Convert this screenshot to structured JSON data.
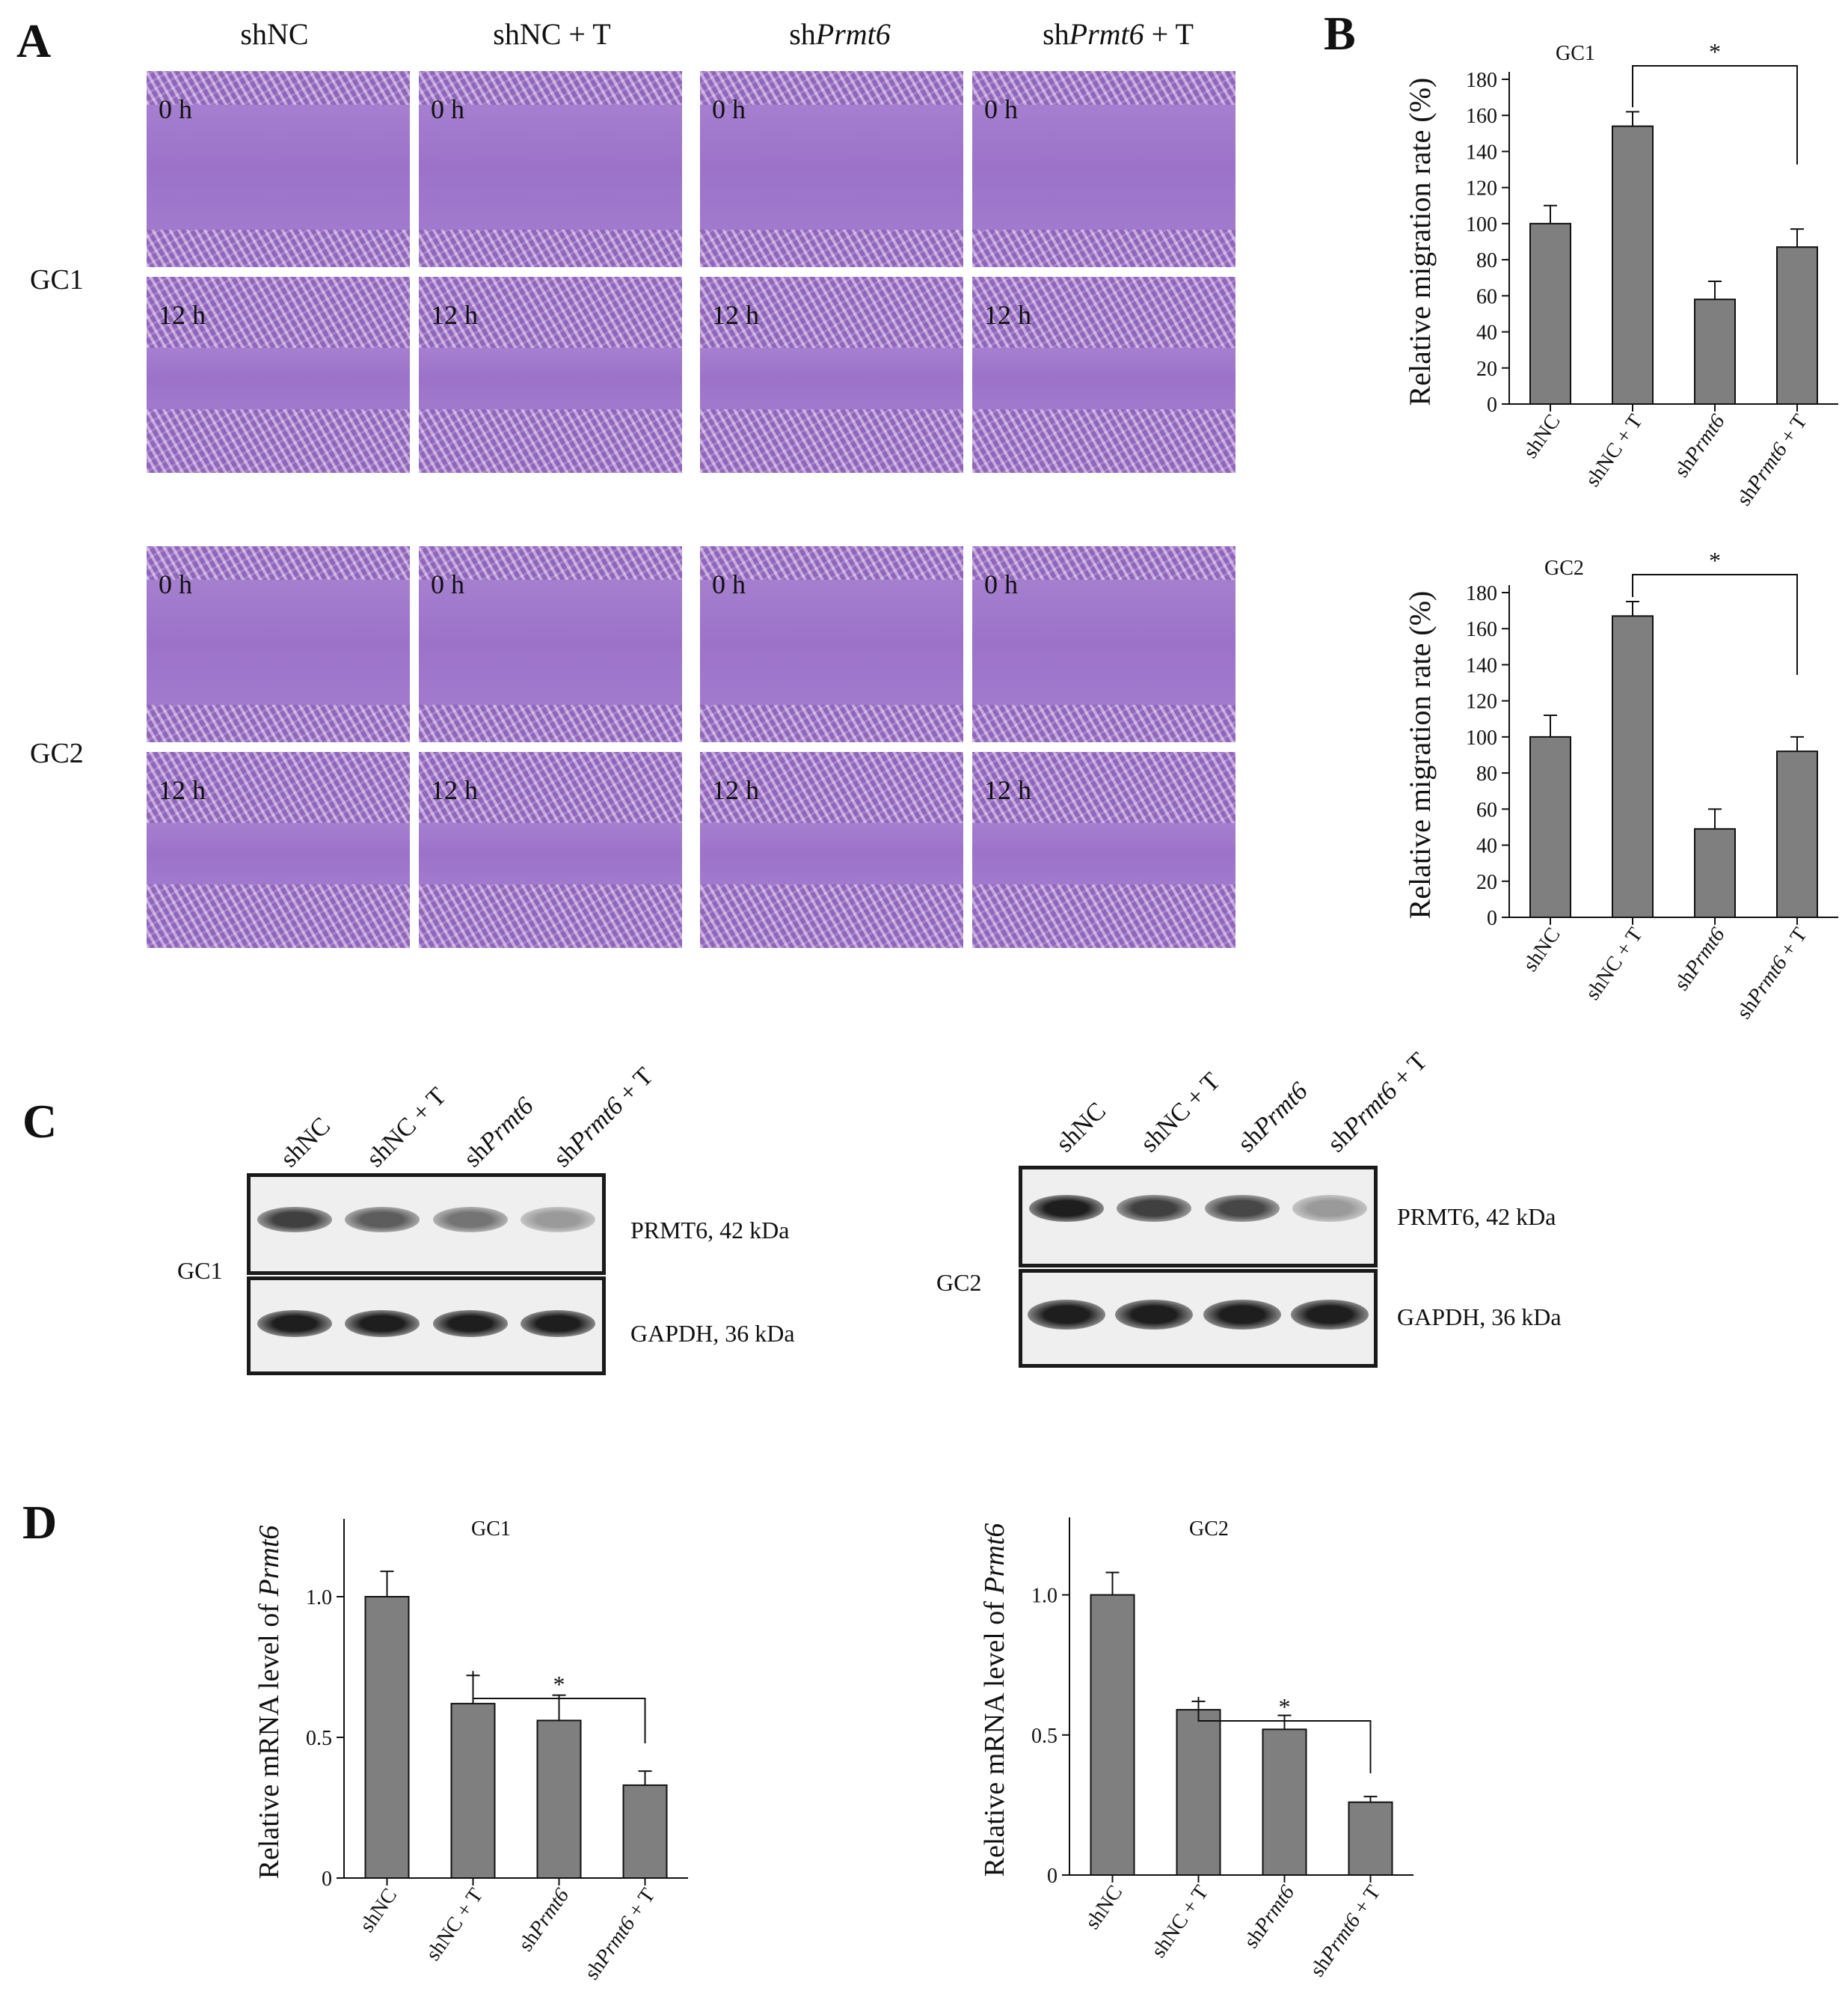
{
  "panels": {
    "A": "A",
    "B": "B",
    "C": "C",
    "D": "D"
  },
  "panelA": {
    "columns": [
      {
        "pre": "sh",
        "main": "NC",
        "italic": "",
        "post": ""
      },
      {
        "pre": "sh",
        "main": "NC + T",
        "italic": "",
        "post": ""
      },
      {
        "pre": "sh",
        "main": "",
        "italic": "Prmt6",
        "post": ""
      },
      {
        "pre": "sh",
        "main": "",
        "italic": "Prmt6",
        "post": " + T"
      }
    ],
    "rows": [
      "GC1",
      "GC2"
    ],
    "time_labels": [
      "0 h",
      "12 h"
    ]
  },
  "panelC": {
    "lanes": [
      "shNC",
      "shNC + T",
      "shPrmt6",
      "shPrmt6 + T"
    ],
    "gc1_label": "GC1",
    "gc2_label": "GC2",
    "prmt6_label": "PRMT6, 42 kDa",
    "gapdh_label": "GAPDH, 36 kDa",
    "gc1_prmt6_intensity": [
      0.85,
      0.72,
      0.62,
      0.45
    ],
    "gc2_prmt6_intensity": [
      1.0,
      0.85,
      0.82,
      0.45
    ]
  },
  "chart_data": [
    {
      "type": "bar",
      "panel": "B",
      "title": "GC1",
      "categories": [
        "shNC",
        "shNC + T",
        "shPrmt6",
        "shPrmt6 + T"
      ],
      "values": [
        100,
        154,
        58,
        87
      ],
      "errors": [
        10,
        8,
        10,
        10
      ],
      "ylabel": "Relative migration rate (%)",
      "ylim": [
        0,
        180
      ],
      "yticks": [
        0,
        20,
        40,
        60,
        80,
        100,
        120,
        140,
        160,
        180
      ],
      "significance": {
        "from": 1,
        "to": 3,
        "mark": "*"
      }
    },
    {
      "type": "bar",
      "panel": "B",
      "title": "GC2",
      "categories": [
        "shNC",
        "shNC + T",
        "shPrmt6",
        "shPrmt6 + T"
      ],
      "values": [
        100,
        167,
        49,
        92
      ],
      "errors": [
        12,
        8,
        11,
        8
      ],
      "ylabel": "Relative migration rate (%)",
      "ylim": [
        0,
        180
      ],
      "yticks": [
        0,
        20,
        40,
        60,
        80,
        100,
        120,
        140,
        160,
        180
      ],
      "significance": {
        "from": 1,
        "to": 3,
        "mark": "*"
      }
    },
    {
      "type": "bar",
      "panel": "D",
      "title": "GC1",
      "categories": [
        "shNC",
        "shNC + T",
        "shPrmt6",
        "shPrmt6 + T"
      ],
      "values": [
        1.0,
        0.62,
        0.56,
        0.33
      ],
      "errors": [
        0.09,
        0.1,
        0.09,
        0.05
      ],
      "ylabel": "Relative mRNA level of Prmt6",
      "ylim": [
        0,
        1.25
      ],
      "yticks": [
        0,
        0.5,
        1.0
      ],
      "ytick_labels": [
        "0",
        "0.5",
        "1.0"
      ],
      "significance": {
        "from": 1,
        "to": 3,
        "mark": "*"
      }
    },
    {
      "type": "bar",
      "panel": "D",
      "title": "GC2",
      "categories": [
        "shNC",
        "shNC + T",
        "shPrmt6",
        "shPrmt6 + T"
      ],
      "values": [
        1.0,
        0.59,
        0.52,
        0.26
      ],
      "errors": [
        0.08,
        0.03,
        0.05,
        0.02
      ],
      "ylabel": "Relative mRNA level of Prmt6",
      "ylim": [
        0,
        1.25
      ],
      "yticks": [
        0,
        0.5,
        1.0
      ],
      "ytick_labels": [
        "0",
        "0.5",
        "1.0"
      ],
      "significance": {
        "from": 1,
        "to": 3,
        "mark": "*"
      }
    }
  ]
}
